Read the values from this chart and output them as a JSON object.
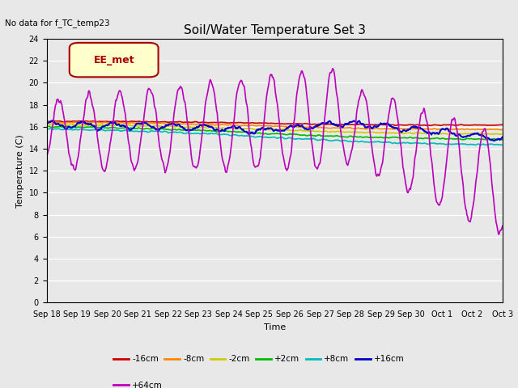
{
  "title": "Soil/Water Temperature Set 3",
  "xlabel": "Time",
  "ylabel": "Temperature (C)",
  "no_data_text": "No data for f_TC_temp23",
  "legend_label_text": "EE_met",
  "ylim": [
    0,
    24
  ],
  "series": [
    {
      "label": "-16cm",
      "color": "#cc0000",
      "linewidth": 1.2
    },
    {
      "label": "-8cm",
      "color": "#ff8800",
      "linewidth": 1.2
    },
    {
      "label": "-2cm",
      "color": "#cccc00",
      "linewidth": 1.2
    },
    {
      "label": "+2cm",
      "color": "#00bb00",
      "linewidth": 1.2
    },
    {
      "label": "+8cm",
      "color": "#00bbbb",
      "linewidth": 1.2
    },
    {
      "label": "+16cm",
      "color": "#0000cc",
      "linewidth": 1.5
    },
    {
      "label": "+64cm",
      "color": "#bb00bb",
      "linewidth": 1.2
    }
  ],
  "x_tick_labels": [
    "Sep 18",
    "Sep 19",
    "Sep 20",
    "Sep 21",
    "Sep 22",
    "Sep 23",
    "Sep 24",
    "Sep 25",
    "Sep 26",
    "Sep 27",
    "Sep 28",
    "Sep 29",
    "Sep 30",
    "Oct 1",
    "Oct 2",
    "Oct 3"
  ],
  "bg_color": "#e8e8e8",
  "fig_bg": "#e8e8e8",
  "title_fontsize": 11,
  "axis_fontsize": 8,
  "tick_fontsize": 7
}
